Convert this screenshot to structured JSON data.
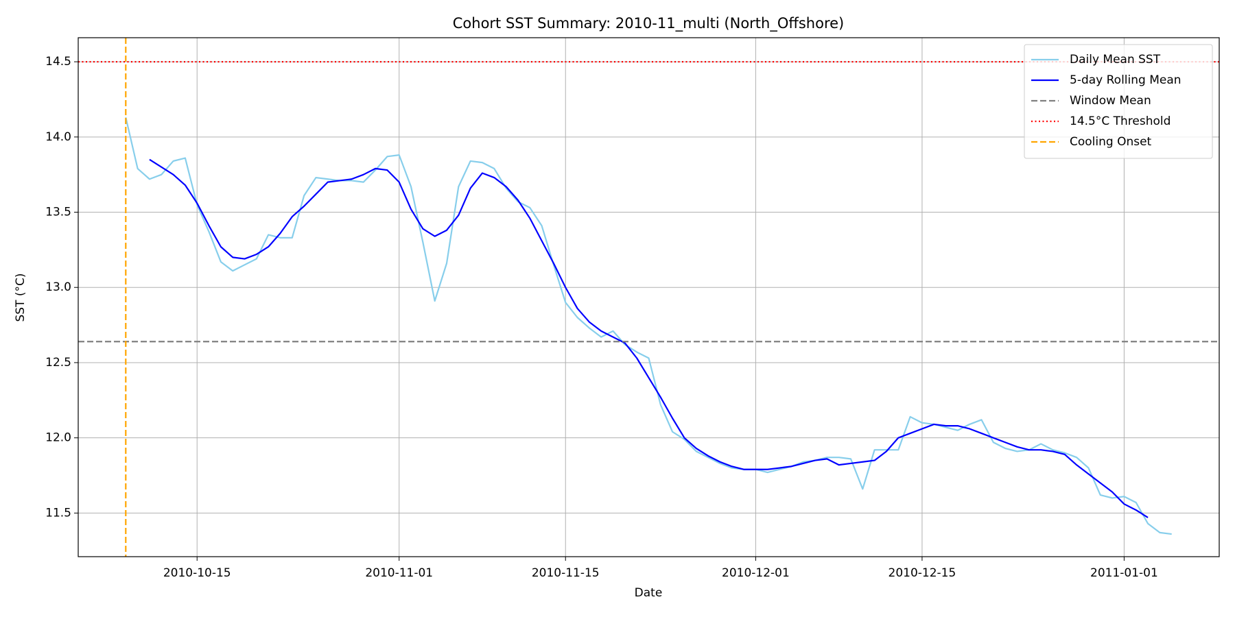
{
  "chart_data": {
    "type": "line",
    "title": "Cohort SST Summary: 2010-11_multi (North_Offshore)",
    "xlabel": "Date",
    "ylabel": "SST (°C)",
    "x": [
      "2010-10-09",
      "2010-10-10",
      "2010-10-11",
      "2010-10-12",
      "2010-10-13",
      "2010-10-14",
      "2010-10-15",
      "2010-10-16",
      "2010-10-17",
      "2010-10-18",
      "2010-10-19",
      "2010-10-20",
      "2010-10-21",
      "2010-10-22",
      "2010-10-23",
      "2010-10-24",
      "2010-10-25",
      "2010-10-26",
      "2010-10-27",
      "2010-10-28",
      "2010-10-29",
      "2010-10-30",
      "2010-10-31",
      "2010-11-01",
      "2010-11-02",
      "2010-11-03",
      "2010-11-04",
      "2010-11-05",
      "2010-11-06",
      "2010-11-07",
      "2010-11-08",
      "2010-11-09",
      "2010-11-10",
      "2010-11-11",
      "2010-11-12",
      "2010-11-13",
      "2010-11-14",
      "2010-11-15",
      "2010-11-16",
      "2010-11-17",
      "2010-11-18",
      "2010-11-19",
      "2010-11-20",
      "2010-11-21",
      "2010-11-22",
      "2010-11-23",
      "2010-11-24",
      "2010-11-25",
      "2010-11-26",
      "2010-11-27",
      "2010-11-28",
      "2010-11-29",
      "2010-11-30",
      "2010-12-01",
      "2010-12-02",
      "2010-12-03",
      "2010-12-04",
      "2010-12-05",
      "2010-12-06",
      "2010-12-07",
      "2010-12-08",
      "2010-12-09",
      "2010-12-10",
      "2010-12-11",
      "2010-12-12",
      "2010-12-13",
      "2010-12-14",
      "2010-12-15",
      "2010-12-16",
      "2010-12-17",
      "2010-12-18",
      "2010-12-19",
      "2010-12-20",
      "2010-12-21",
      "2010-12-22",
      "2010-12-23",
      "2010-12-24",
      "2010-12-25",
      "2010-12-26",
      "2010-12-27",
      "2010-12-28",
      "2010-12-29",
      "2010-12-30",
      "2010-12-31",
      "2011-01-01",
      "2011-01-02",
      "2011-01-03",
      "2011-01-04",
      "2011-01-05"
    ],
    "series": [
      {
        "name": "Daily Mean SST",
        "color": "#87ceeb",
        "style": "solid",
        "values": [
          14.13,
          13.79,
          13.72,
          13.75,
          13.84,
          13.86,
          13.55,
          13.37,
          13.17,
          13.11,
          13.15,
          13.19,
          13.35,
          13.33,
          13.33,
          13.61,
          13.73,
          13.72,
          13.71,
          13.71,
          13.7,
          13.78,
          13.87,
          13.88,
          13.67,
          13.3,
          12.91,
          13.16,
          13.67,
          13.84,
          13.83,
          13.79,
          13.66,
          13.57,
          13.53,
          13.41,
          13.15,
          12.9,
          12.8,
          12.73,
          12.67,
          12.71,
          12.62,
          12.57,
          12.53,
          12.22,
          12.04,
          11.99,
          11.91,
          11.87,
          11.83,
          11.8,
          11.79,
          11.79,
          11.77,
          11.79,
          11.81,
          11.84,
          11.85,
          11.87,
          11.87,
          11.86,
          11.66,
          11.92,
          11.92,
          11.92,
          12.14,
          12.1,
          12.09,
          12.07,
          12.05,
          12.09,
          12.12,
          11.97,
          11.93,
          11.91,
          11.92,
          11.96,
          11.92,
          11.9,
          11.87,
          11.8,
          11.62,
          11.6,
          11.61,
          11.57,
          11.43,
          11.37,
          11.36
        ]
      },
      {
        "name": "5-day Rolling Mean",
        "color": "#0000ff",
        "style": "solid",
        "values": [
          null,
          null,
          13.85,
          13.8,
          13.75,
          13.68,
          13.56,
          13.41,
          13.27,
          13.2,
          13.19,
          13.22,
          13.27,
          13.36,
          13.47,
          13.54,
          13.62,
          13.7,
          13.71,
          13.72,
          13.75,
          13.79,
          13.78,
          13.7,
          13.52,
          13.39,
          13.34,
          13.38,
          13.48,
          13.66,
          13.76,
          13.73,
          13.67,
          13.58,
          13.46,
          13.31,
          13.16,
          13.0,
          12.86,
          12.77,
          12.71,
          12.67,
          12.63,
          12.53,
          12.4,
          12.27,
          12.13,
          12.0,
          11.93,
          11.88,
          11.84,
          11.81,
          11.79,
          11.79,
          11.79,
          11.8,
          11.81,
          11.83,
          11.85,
          11.86,
          11.82,
          11.83,
          11.84,
          11.85,
          11.91,
          12.0,
          12.03,
          12.06,
          12.09,
          12.08,
          12.08,
          12.06,
          12.03,
          12.0,
          11.97,
          11.94,
          11.92,
          11.92,
          11.91,
          11.89,
          11.82,
          11.76,
          11.7,
          11.64,
          11.56,
          11.52,
          11.47,
          null,
          null
        ]
      }
    ],
    "hlines": [
      {
        "name": "Window Mean",
        "value": 12.64,
        "color": "#808080",
        "style": "dashed"
      },
      {
        "name": "14.5°C Threshold",
        "value": 14.5,
        "color": "#ff0000",
        "style": "dotted"
      }
    ],
    "vlines": [
      {
        "name": "Cooling Onset",
        "value": "2010-10-09",
        "color": "#ffa500",
        "style": "dashed"
      }
    ],
    "xlim": [
      "2010-10-05",
      "2011-01-09"
    ],
    "xticks": [
      "2010-10-15",
      "2010-11-01",
      "2010-11-15",
      "2010-12-01",
      "2010-12-15",
      "2011-01-01"
    ],
    "ylim": [
      11.21,
      14.66
    ],
    "yticks": [
      {
        "value": 11.5,
        "label": "11.5"
      },
      {
        "value": 12,
        "label": "12.0"
      },
      {
        "value": 12.5,
        "label": "12.5"
      },
      {
        "value": 13,
        "label": "13.0"
      },
      {
        "value": 13.5,
        "label": "13.5"
      },
      {
        "value": 14,
        "label": "14.0"
      },
      {
        "value": 14.5,
        "label": "14.5"
      }
    ],
    "grid": true,
    "legend": "upper right"
  }
}
